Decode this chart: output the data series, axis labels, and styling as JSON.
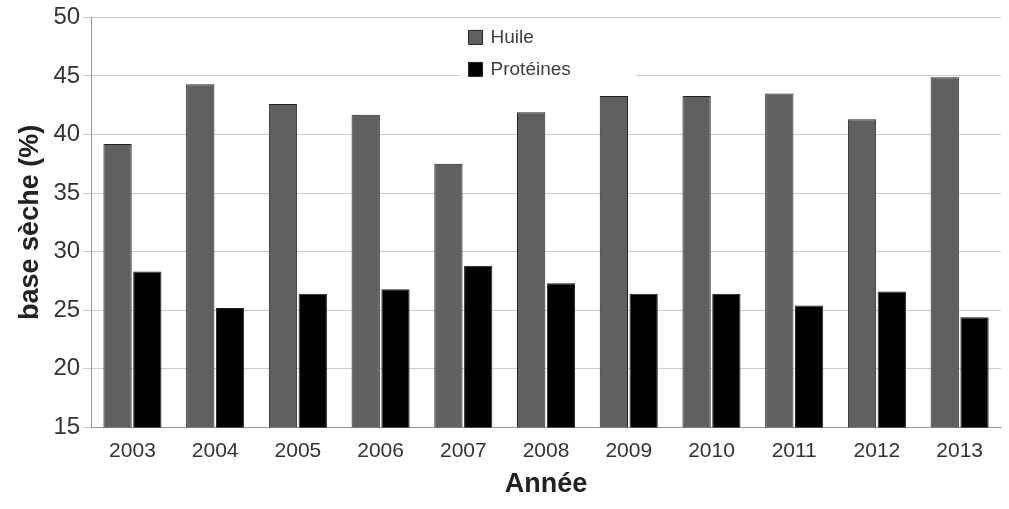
{
  "chart_data": {
    "type": "bar",
    "xlabel": "Année",
    "ylabel": "base sèche (%)",
    "categories": [
      "2003",
      "2004",
      "2005",
      "2006",
      "2007",
      "2008",
      "2009",
      "2010",
      "2011",
      "2012",
      "2013"
    ],
    "series": [
      {
        "name": "Huile",
        "color": "#606060",
        "values": [
          39.2,
          44.3,
          42.6,
          41.7,
          37.5,
          41.9,
          43.3,
          43.3,
          43.5,
          41.3,
          44.9
        ]
      },
      {
        "name": "Protéines",
        "color": "#000000",
        "values": [
          28.3,
          25.2,
          26.4,
          26.8,
          28.8,
          27.3,
          26.4,
          26.4,
          25.4,
          26.6,
          24.4
        ]
      }
    ],
    "ylim": [
      15,
      50
    ],
    "yticks": [
      15,
      20,
      25,
      30,
      35,
      40,
      45,
      50
    ],
    "grid": "y",
    "legend": "top"
  }
}
